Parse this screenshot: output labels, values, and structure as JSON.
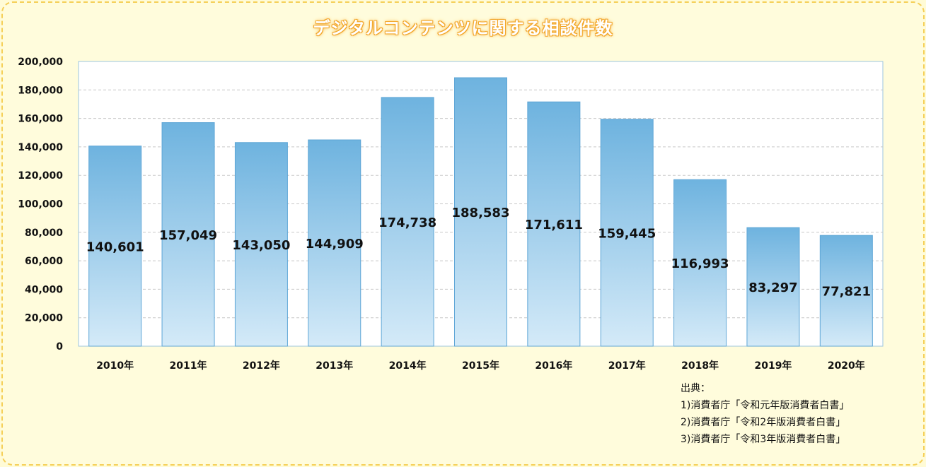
{
  "chart_data": {
    "type": "bar",
    "title": "デジタルコンテンツに関する相談件数",
    "categories": [
      "2010年",
      "2011年",
      "2012年",
      "2013年",
      "2014年",
      "2015年",
      "2016年",
      "2017年",
      "2018年",
      "2019年",
      "2020年"
    ],
    "values": [
      140601,
      157049,
      143050,
      144909,
      174738,
      188583,
      171611,
      159445,
      116993,
      83297,
      77821
    ],
    "data_labels": [
      "140,601",
      "157,049",
      "143,050",
      "144,909",
      "174,738",
      "188,583",
      "171,611",
      "159,445",
      "116,993",
      "83,297",
      "77,821"
    ],
    "y_ticks": [
      0,
      20000,
      40000,
      60000,
      80000,
      100000,
      120000,
      140000,
      160000,
      180000,
      200000
    ],
    "y_tick_labels": [
      "0",
      "20,000",
      "40,000",
      "60,000",
      "80,000",
      "100,000",
      "120,000",
      "140,000",
      "160,000",
      "180,000",
      "200,000"
    ],
    "ylim": [
      0,
      200000
    ],
    "xlabel": "",
    "ylabel": "",
    "grid": true,
    "bar_color_top": "#6eb3df",
    "bar_color_bottom": "#d4eaf8"
  },
  "source": {
    "heading": "出典：",
    "lines": [
      "1)消費者庁「令和元年版消費者白書」",
      "2)消費者庁「令和2年版消費者白書」",
      "3)消費者庁「令和3年版消費者白書」"
    ]
  },
  "colors": {
    "background": "#fffcdc",
    "frame_border": "#f5cf57",
    "title_outline": "#f2a62a"
  }
}
